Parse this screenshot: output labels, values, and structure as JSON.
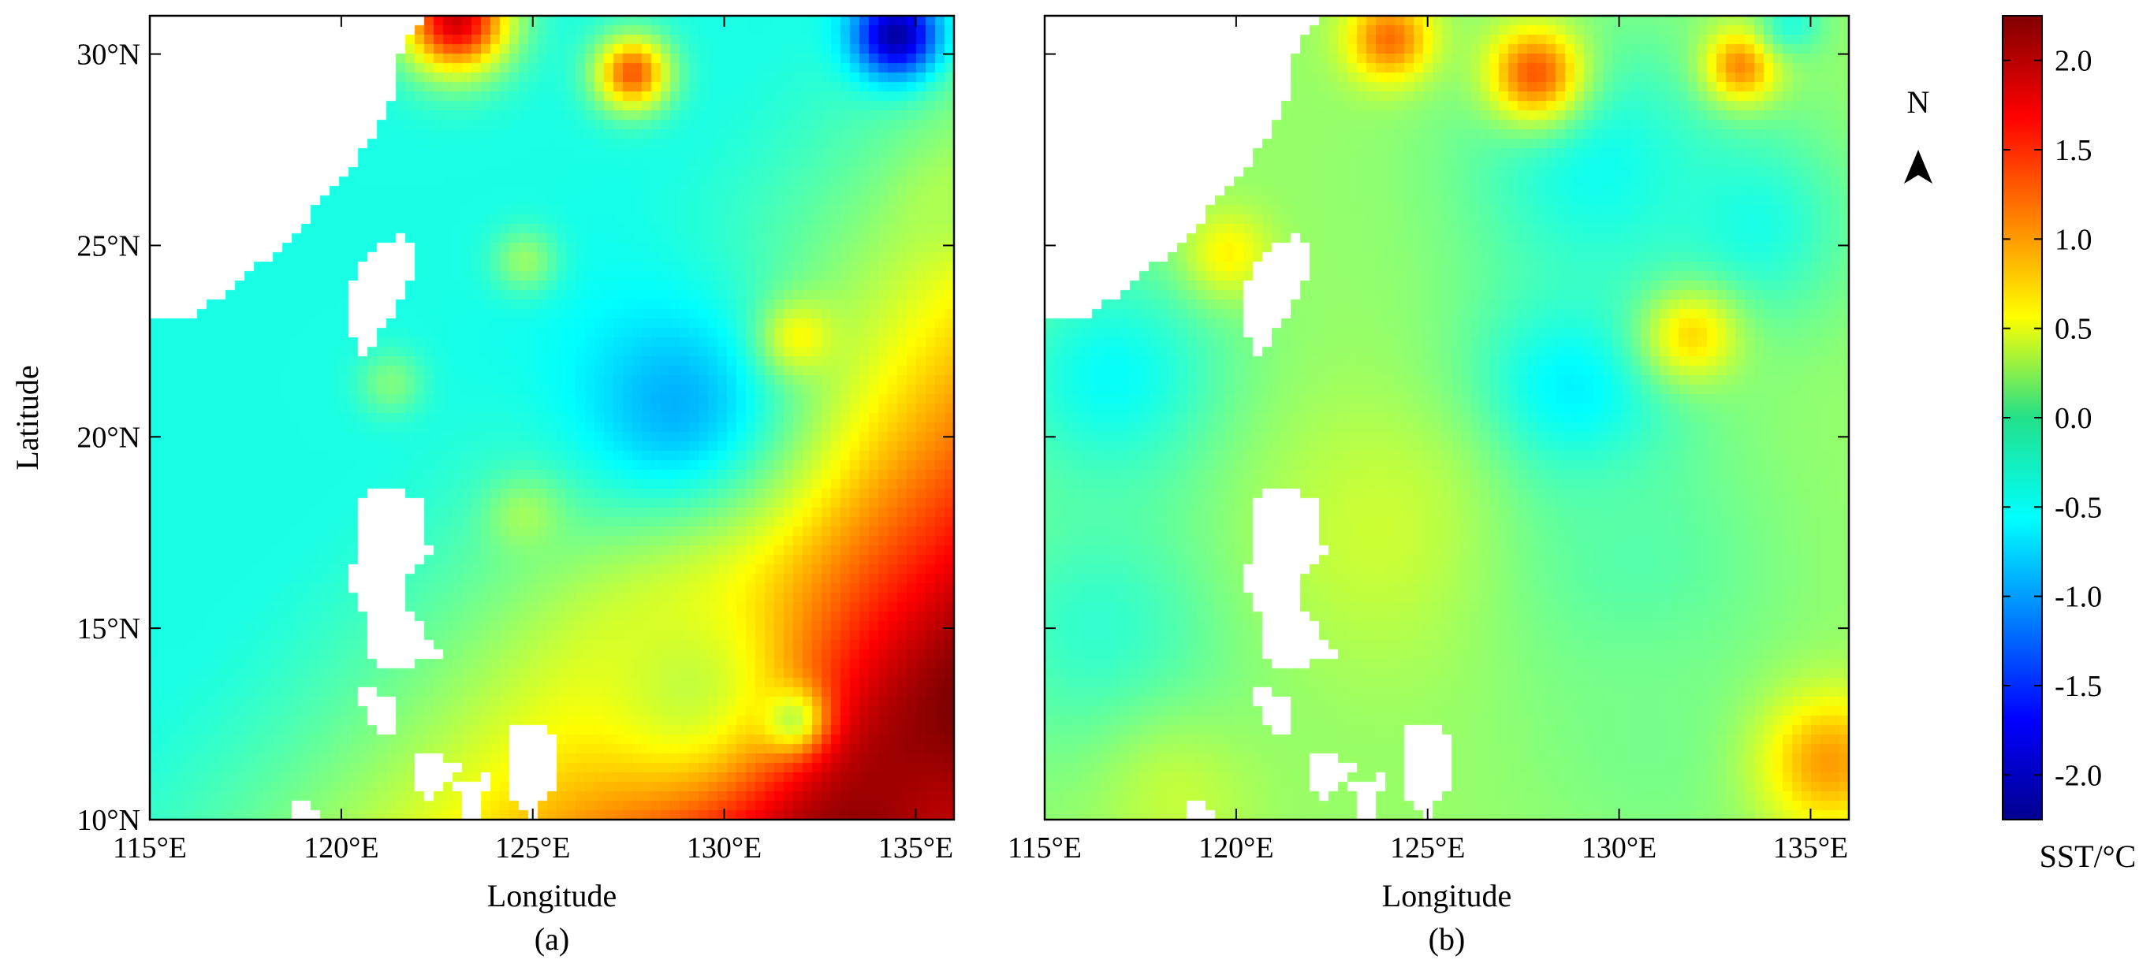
{
  "chart_data": [
    {
      "type": "heatmap",
      "panel_label": "(a)",
      "xlabel": "Longitude",
      "ylabel": "Latitude",
      "xlim": [
        115,
        136
      ],
      "ylim": [
        10,
        31
      ],
      "x_ticks": [
        115,
        120,
        125,
        130,
        135
      ],
      "x_tick_labels": [
        "115°E",
        "120°E",
        "125°E",
        "130°E",
        "135°E"
      ],
      "y_ticks": [
        10,
        15,
        20,
        25,
        30
      ],
      "y_tick_labels": [
        "10°N",
        "15°N",
        "20°N",
        "25°N",
        "30°N"
      ],
      "value_field": {
        "base": -0.45,
        "gradient": {
          "origin_lon": 128.5,
          "origin_lat": 21,
          "dlon": 0.055,
          "dlat": 0.045,
          "power": 1.7
        },
        "centers": [
          {
            "lon": 128.7,
            "lat": 20.9,
            "value": -0.9,
            "radius": 2.2
          },
          {
            "lon": 132.0,
            "lat": 22.6,
            "value": 0.55,
            "radius": 0.7
          },
          {
            "lon": 124.8,
            "lat": 24.6,
            "value": 0.1,
            "radius": 0.6
          },
          {
            "lon": 121.3,
            "lat": 21.4,
            "value": 0.0,
            "radius": 0.6
          },
          {
            "lon": 124.8,
            "lat": 17.9,
            "value": 0.15,
            "radius": 0.7
          },
          {
            "lon": 131.8,
            "lat": 12.6,
            "value": -0.05,
            "radius": 0.6
          },
          {
            "lon": 127.6,
            "lat": 29.5,
            "value": 1.3,
            "radius": 0.7
          },
          {
            "lon": 123.0,
            "lat": 30.9,
            "value": 1.9,
            "radius": 1.0
          },
          {
            "lon": 134.5,
            "lat": 30.5,
            "value": -2.1,
            "radius": 0.8
          },
          {
            "lon": 135.8,
            "lat": 26.0,
            "value": 0.2,
            "radius": 0.8
          },
          {
            "lon": 135.8,
            "lat": 9.9,
            "value": 2.0,
            "radius": 2.5
          },
          {
            "lon": 129.0,
            "lat": 13.5,
            "value": 0.3,
            "radius": 2.0
          }
        ],
        "min": -2.1,
        "max": 2.0
      }
    },
    {
      "type": "heatmap",
      "panel_label": "(b)",
      "xlabel": "Longitude",
      "ylabel": "",
      "xlim": [
        115,
        136
      ],
      "ylim": [
        10,
        31
      ],
      "x_ticks": [
        115,
        120,
        125,
        130,
        135
      ],
      "x_tick_labels": [
        "115°E",
        "120°E",
        "125°E",
        "130°E",
        "135°E"
      ],
      "y_ticks": [
        10,
        15,
        20,
        25,
        30
      ],
      "y_tick_labels": [
        "",
        "",
        "",
        "",
        ""
      ],
      "value_field": {
        "base": 0.1,
        "centers": [
          {
            "lon": 116.8,
            "lat": 21.5,
            "value": -0.55,
            "radius": 2.2
          },
          {
            "lon": 116.5,
            "lat": 15.0,
            "value": -0.35,
            "radius": 2.5
          },
          {
            "lon": 128.7,
            "lat": 20.9,
            "value": -0.75,
            "radius": 2.0
          },
          {
            "lon": 129.5,
            "lat": 27.0,
            "value": -0.5,
            "radius": 2.5
          },
          {
            "lon": 133.5,
            "lat": 25.5,
            "value": -0.45,
            "radius": 1.8
          },
          {
            "lon": 131.9,
            "lat": 22.6,
            "value": 0.75,
            "radius": 0.9
          },
          {
            "lon": 124.0,
            "lat": 30.4,
            "value": 1.2,
            "radius": 0.8
          },
          {
            "lon": 127.8,
            "lat": 29.5,
            "value": 1.3,
            "radius": 0.9
          },
          {
            "lon": 133.2,
            "lat": 29.7,
            "value": 1.1,
            "radius": 0.7
          },
          {
            "lon": 134.5,
            "lat": 30.8,
            "value": -0.4,
            "radius": 0.6
          },
          {
            "lon": 119.8,
            "lat": 24.8,
            "value": 0.6,
            "radius": 0.8
          },
          {
            "lon": 124.0,
            "lat": 17.5,
            "value": 0.35,
            "radius": 2.5
          },
          {
            "lon": 130.5,
            "lat": 16.5,
            "value": -0.2,
            "radius": 2.5
          },
          {
            "lon": 131.0,
            "lat": 12.0,
            "value": -0.05,
            "radius": 2.2
          },
          {
            "lon": 135.5,
            "lat": 11.5,
            "value": 1.0,
            "radius": 1.3
          },
          {
            "lon": 118.5,
            "lat": 10.5,
            "value": 0.3,
            "radius": 1.5
          }
        ],
        "min": -0.8,
        "max": 1.5
      }
    }
  ],
  "colorbar": {
    "min": -2.25,
    "max": 2.25,
    "ticks": [
      2.0,
      1.5,
      1.0,
      0.5,
      0.0,
      -0.5,
      -1.0,
      -1.5,
      -2.0
    ],
    "tick_labels": [
      "2.0",
      "1.5",
      "1.0",
      "0.5",
      "0.0",
      "-0.5",
      "-1.0",
      "-1.5",
      "-2.0"
    ],
    "label": "SST/°C",
    "colormap": "jet"
  },
  "north_arrow": {
    "label": "N",
    "icon": "north-arrow-icon"
  },
  "land_mask": [
    {
      "name": "mainland-china",
      "polygon": [
        [
          115,
          31
        ],
        [
          122.2,
          31
        ],
        [
          121.5,
          30
        ],
        [
          121.5,
          29
        ],
        [
          120.6,
          27.5
        ],
        [
          119.5,
          26.2
        ],
        [
          118.8,
          25.2
        ],
        [
          117.5,
          24.2
        ],
        [
          116.2,
          23.2
        ],
        [
          115,
          23
        ],
        [
          115,
          31
        ]
      ]
    },
    {
      "name": "taiwan",
      "polygon": [
        [
          121.7,
          25.3
        ],
        [
          122.0,
          24.7
        ],
        [
          121.7,
          23.8
        ],
        [
          121.0,
          22.7
        ],
        [
          120.7,
          22.0
        ],
        [
          120.3,
          22.5
        ],
        [
          120.1,
          23.4
        ],
        [
          120.4,
          24.3
        ],
        [
          121.0,
          25.0
        ],
        [
          121.7,
          25.3
        ]
      ]
    },
    {
      "name": "luzon",
      "polygon": [
        [
          120.6,
          18.6
        ],
        [
          121.4,
          18.6
        ],
        [
          122.2,
          18.2
        ],
        [
          122.3,
          17.0
        ],
        [
          121.6,
          16.2
        ],
        [
          121.8,
          15.4
        ],
        [
          122.6,
          14.3
        ],
        [
          121.5,
          13.9
        ],
        [
          120.6,
          14.2
        ],
        [
          120.8,
          15.0
        ],
        [
          120.2,
          16.1
        ],
        [
          120.4,
          17.2
        ],
        [
          120.6,
          18.6
        ]
      ]
    },
    {
      "name": "mindoro",
      "polygon": [
        [
          120.4,
          13.5
        ],
        [
          121.5,
          13.1
        ],
        [
          121.3,
          12.3
        ],
        [
          120.9,
          12.2
        ],
        [
          120.4,
          13.5
        ]
      ]
    },
    {
      "name": "panay",
      "polygon": [
        [
          121.9,
          11.9
        ],
        [
          123.1,
          11.4
        ],
        [
          122.3,
          10.5
        ],
        [
          121.9,
          10.9
        ],
        [
          121.9,
          11.9
        ]
      ]
    },
    {
      "name": "samar-leyte",
      "polygon": [
        [
          124.4,
          12.5
        ],
        [
          125.6,
          12.3
        ],
        [
          125.7,
          11.2
        ],
        [
          125.0,
          10.0
        ],
        [
          124.4,
          10.6
        ],
        [
          124.3,
          11.6
        ],
        [
          124.4,
          12.5
        ]
      ]
    },
    {
      "name": "negros-cebu",
      "polygon": [
        [
          123.0,
          11.0
        ],
        [
          124.0,
          11.2
        ],
        [
          123.5,
          10.0
        ],
        [
          123.1,
          9.8
        ],
        [
          123.0,
          11.0
        ]
      ]
    },
    {
      "name": "mindanao",
      "polygon": [
        [
          123.5,
          10.0
        ],
        [
          126.5,
          10.0
        ],
        [
          126.2,
          9.7
        ],
        [
          123.6,
          9.7
        ],
        [
          123.5,
          10.0
        ]
      ]
    },
    {
      "name": "palawan",
      "polygon": [
        [
          119.5,
          10.0
        ],
        [
          118.9,
          10.8
        ],
        [
          118.7,
          10.0
        ],
        [
          119.5,
          10.0
        ]
      ]
    }
  ]
}
